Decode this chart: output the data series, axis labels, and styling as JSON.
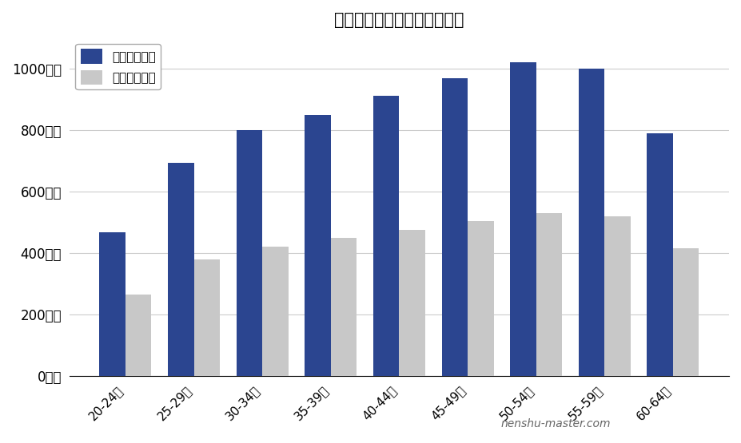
{
  "title": "江崎グリコの年齢別平均年収",
  "categories": [
    "20-24歳",
    "25-29歳",
    "30-34歳",
    "35-39歳",
    "40-44歳",
    "45-49歳",
    "50-54歳",
    "55-59歳",
    "60-64歳"
  ],
  "company_values": [
    467,
    693,
    800,
    850,
    912,
    968,
    1020,
    1000,
    790
  ],
  "national_values": [
    265,
    378,
    420,
    448,
    475,
    503,
    530,
    520,
    415
  ],
  "company_color": "#2B4590",
  "national_color": "#C8C8C8",
  "legend_company": "想定平均年収",
  "legend_national": "全国平均年収",
  "ylabel_ticks": [
    "0万円",
    "200万円",
    "400万円",
    "600万円",
    "800万円",
    "1000万円"
  ],
  "ytick_values": [
    0,
    200,
    400,
    600,
    800,
    1000
  ],
  "ylim": [
    0,
    1100
  ],
  "watermark": "nenshu-master.com",
  "background_color": "#FFFFFF",
  "grid_color": "#CCCCCC"
}
